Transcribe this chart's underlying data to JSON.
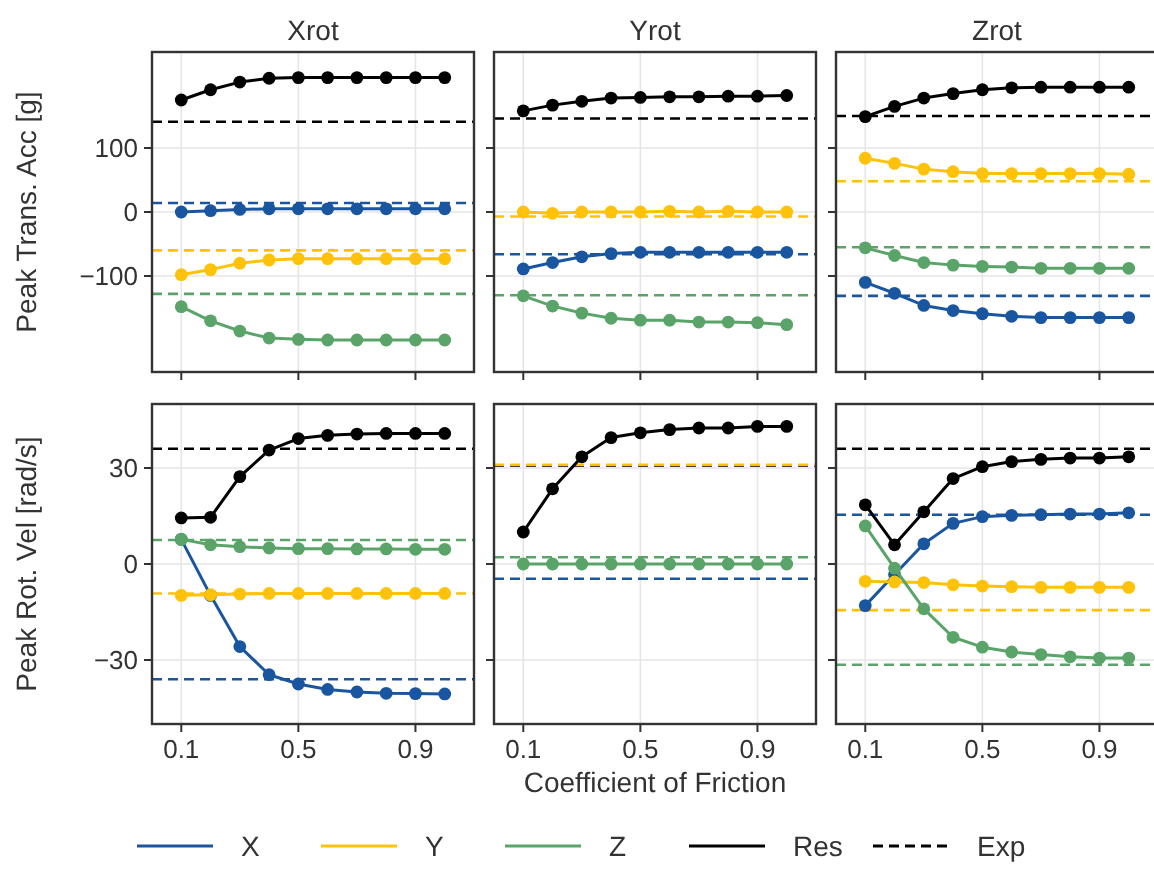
{
  "chart_data": [
    {
      "type": "line",
      "title": "Xrot",
      "ylabel": "Peak Trans. Acc [g]",
      "x": [
        0.1,
        0.2,
        0.3,
        0.4,
        0.5,
        0.6,
        0.7,
        0.8,
        0.9,
        1.0
      ],
      "xlim": [
        0,
        1.1
      ],
      "xticks": [
        0.1,
        0.5,
        0.9
      ],
      "ylim": [
        -250,
        250
      ],
      "yticks": [
        -100,
        0,
        100
      ],
      "tick_labels": "y",
      "grid": true,
      "marker": "circle",
      "legend": "bottom",
      "series": [
        {
          "name": "X",
          "color": "#1a55a0",
          "values": [
            0,
            2,
            4,
            5,
            5,
            5,
            5,
            5,
            5,
            5
          ]
        },
        {
          "name": "Y",
          "color": "#ffc20a",
          "values": [
            -98,
            -90,
            -80,
            -75,
            -73,
            -73,
            -73,
            -73,
            -73,
            -73
          ]
        },
        {
          "name": "Z",
          "color": "#5aa469",
          "values": [
            -148,
            -170,
            -186,
            -197,
            -199,
            -200,
            -200,
            -200,
            -200,
            -200
          ]
        },
        {
          "name": "Res",
          "color": "#000000",
          "values": [
            175,
            191,
            203,
            209,
            210,
            210,
            210,
            210,
            210,
            210
          ]
        }
      ],
      "ref_lines": [
        {
          "axis": "y",
          "value": 141,
          "label": "Exp",
          "color": "#000000",
          "line_style": "dashed"
        },
        {
          "axis": "y",
          "value": 14,
          "color": "#1a55a0",
          "line_style": "dashed"
        },
        {
          "axis": "y",
          "value": -60,
          "color": "#ffc20a",
          "line_style": "dashed"
        },
        {
          "axis": "y",
          "value": -128,
          "color": "#5aa469",
          "line_style": "dashed"
        }
      ]
    },
    {
      "type": "line",
      "title": "Yrot",
      "x": [
        0.1,
        0.2,
        0.3,
        0.4,
        0.5,
        0.6,
        0.7,
        0.8,
        0.9,
        1.0
      ],
      "xlim": [
        0,
        1.1
      ],
      "xticks": [
        0.1,
        0.5,
        0.9
      ],
      "ylim": [
        -250,
        250
      ],
      "yticks": [
        -100,
        0,
        100
      ],
      "tick_labels": false,
      "grid": true,
      "marker": "circle",
      "series": [
        {
          "name": "X",
          "color": "#1a55a0",
          "values": [
            -89,
            -79,
            -70,
            -65,
            -63,
            -63,
            -63,
            -63,
            -63,
            -63
          ]
        },
        {
          "name": "Y",
          "color": "#ffc20a",
          "values": [
            0,
            -2,
            0,
            0,
            0,
            1,
            0,
            1,
            0,
            0
          ]
        },
        {
          "name": "Z",
          "color": "#5aa469",
          "values": [
            -131,
            -147,
            -158,
            -166,
            -169,
            -169,
            -172,
            -172,
            -173,
            -176
          ]
        },
        {
          "name": "Res",
          "color": "#000000",
          "values": [
            158,
            167,
            173,
            178,
            179,
            180,
            180,
            181,
            181,
            182
          ]
        }
      ],
      "ref_lines": [
        {
          "axis": "y",
          "value": 146,
          "color": "#000000",
          "line_style": "dashed"
        },
        {
          "axis": "y",
          "value": -66,
          "color": "#1a55a0",
          "line_style": "dashed"
        },
        {
          "axis": "y",
          "value": -7,
          "color": "#ffc20a",
          "line_style": "dashed"
        },
        {
          "axis": "y",
          "value": -130,
          "color": "#5aa469",
          "line_style": "dashed"
        }
      ]
    },
    {
      "type": "line",
      "title": "Zrot",
      "x": [
        0.1,
        0.2,
        0.3,
        0.4,
        0.5,
        0.6,
        0.7,
        0.8,
        0.9,
        1.0
      ],
      "xlim": [
        0,
        1.1
      ],
      "xticks": [
        0.1,
        0.5,
        0.9
      ],
      "ylim": [
        -250,
        250
      ],
      "yticks": [
        -100,
        0,
        100
      ],
      "tick_labels": false,
      "grid": true,
      "marker": "circle",
      "series": [
        {
          "name": "X",
          "color": "#1a55a0",
          "values": [
            -110,
            -127,
            -146,
            -154,
            -159,
            -163,
            -165,
            -165,
            -165,
            -165
          ]
        },
        {
          "name": "Y",
          "color": "#ffc20a",
          "values": [
            84,
            76,
            67,
            63,
            60,
            60,
            60,
            60,
            60,
            59
          ]
        },
        {
          "name": "Z",
          "color": "#5aa469",
          "values": [
            -56,
            -68,
            -79,
            -83,
            -85,
            -86,
            -88,
            -88,
            -88,
            -88
          ]
        },
        {
          "name": "Res",
          "color": "#000000",
          "values": [
            149,
            165,
            178,
            185,
            191,
            194,
            195,
            195,
            195,
            195
          ]
        }
      ],
      "ref_lines": [
        {
          "axis": "y",
          "value": 150,
          "color": "#000000",
          "line_style": "dashed"
        },
        {
          "axis": "y",
          "value": -131,
          "color": "#1a55a0",
          "line_style": "dashed"
        },
        {
          "axis": "y",
          "value": 48,
          "color": "#ffc20a",
          "line_style": "dashed"
        },
        {
          "axis": "y",
          "value": -55,
          "color": "#5aa469",
          "line_style": "dashed"
        }
      ]
    },
    {
      "type": "line",
      "ylabel": "Peak Rot. Vel [rad/s]",
      "x": [
        0.1,
        0.2,
        0.3,
        0.4,
        0.5,
        0.6,
        0.7,
        0.8,
        0.9,
        1.0
      ],
      "xlim": [
        0,
        1.1
      ],
      "xticks": [
        0.1,
        0.5,
        0.9
      ],
      "ylim": [
        -50,
        50
      ],
      "yticks": [
        -30,
        0,
        30
      ],
      "grid": true,
      "marker": "circle",
      "series": [
        {
          "name": "X",
          "color": "#1a55a0",
          "values": [
            7.7,
            -9.8,
            -25.8,
            -34.6,
            -37.5,
            -39.2,
            -40,
            -40.4,
            -40.5,
            -40.6
          ]
        },
        {
          "name": "Y",
          "color": "#ffc20a",
          "values": [
            -9.8,
            -9.6,
            -9.4,
            -9.2,
            -9.2,
            -9.2,
            -9.2,
            -9.2,
            -9.2,
            -9.2
          ]
        },
        {
          "name": "Z",
          "color": "#5aa469",
          "values": [
            7.7,
            6,
            5.4,
            5,
            4.8,
            4.8,
            4.7,
            4.7,
            4.6,
            4.6
          ]
        },
        {
          "name": "Res",
          "color": "#000000",
          "values": [
            14.4,
            14.6,
            27.3,
            35.6,
            39.2,
            40.2,
            40.6,
            40.8,
            40.8,
            40.8
          ]
        }
      ],
      "ref_lines": [
        {
          "axis": "y",
          "value": 36,
          "color": "#000000",
          "line_style": "dashed"
        },
        {
          "axis": "y",
          "value": -36,
          "color": "#1a55a0",
          "line_style": "dashed"
        },
        {
          "axis": "y",
          "value": -9.2,
          "color": "#ffc20a",
          "line_style": "dashed"
        },
        {
          "axis": "y",
          "value": 7.5,
          "color": "#5aa469",
          "line_style": "dashed"
        }
      ]
    },
    {
      "type": "line",
      "xlabel": "Coefficient of Friction",
      "x": [
        0.1,
        0.2,
        0.3,
        0.4,
        0.5,
        0.6,
        0.7,
        0.8,
        0.9,
        1.0
      ],
      "xlim": [
        0,
        1.1
      ],
      "xticks": [
        0.1,
        0.5,
        0.9
      ],
      "ylim": [
        -50,
        50
      ],
      "yticks": [
        -30,
        0,
        30
      ],
      "tick_labels": "x",
      "grid": true,
      "marker": "circle",
      "series": [
        {
          "name": "X",
          "color": "#1a55a0",
          "values": [
            null,
            null,
            null,
            null,
            null,
            null,
            null,
            null,
            null,
            null
          ]
        },
        {
          "name": "Y",
          "color": "#ffc20a",
          "values": [
            null,
            null,
            null,
            null,
            null,
            null,
            null,
            null,
            null,
            null
          ]
        },
        {
          "name": "Z",
          "color": "#5aa469",
          "values": [
            0,
            0,
            0,
            0,
            0,
            0,
            0,
            0,
            0,
            0
          ]
        },
        {
          "name": "Res",
          "color": "#000000",
          "values": [
            10,
            23.5,
            33.5,
            39.5,
            41,
            42,
            42.5,
            42.5,
            43,
            43
          ]
        }
      ],
      "ref_lines": [
        {
          "axis": "y",
          "value": 30.8,
          "color": "#000000",
          "line_style": "dashed"
        },
        {
          "axis": "y",
          "value": -4.6,
          "color": "#1a55a0",
          "line_style": "dashed"
        },
        {
          "axis": "y",
          "value": 31,
          "color": "#ffc20a",
          "line_style": "dashed"
        },
        {
          "axis": "y",
          "value": 2.1,
          "color": "#5aa469",
          "line_style": "dashed"
        }
      ]
    },
    {
      "type": "line",
      "x": [
        0.1,
        0.2,
        0.3,
        0.4,
        0.5,
        0.6,
        0.7,
        0.8,
        0.9,
        1.0
      ],
      "xlim": [
        0,
        1.1
      ],
      "xticks": [
        0.1,
        0.5,
        0.9
      ],
      "ylim": [
        -50,
        50
      ],
      "yticks": [
        -30,
        0,
        30
      ],
      "tick_labels": "x",
      "grid": true,
      "marker": "circle",
      "series": [
        {
          "name": "X",
          "color": "#1a55a0",
          "values": [
            -13,
            -3.3,
            6.3,
            12.7,
            14.8,
            15.2,
            15.4,
            15.6,
            15.6,
            16
          ]
        },
        {
          "name": "Y",
          "color": "#ffc20a",
          "values": [
            -5.4,
            -5.6,
            -5.8,
            -6.5,
            -6.9,
            -7.1,
            -7.3,
            -7.3,
            -7.3,
            -7.3
          ]
        },
        {
          "name": "Z",
          "color": "#5aa469",
          "values": [
            11.9,
            -1.3,
            -14,
            -22.9,
            -26,
            -27.5,
            -28.3,
            -29,
            -29.4,
            -29.4
          ]
        },
        {
          "name": "Res",
          "color": "#000000",
          "values": [
            18.5,
            6,
            16.3,
            26.7,
            30.4,
            32,
            32.7,
            33.1,
            33.1,
            33.5
          ]
        }
      ],
      "ref_lines": [
        {
          "axis": "y",
          "value": 36,
          "color": "#000000",
          "line_style": "dashed"
        },
        {
          "axis": "y",
          "value": 15.4,
          "color": "#1a55a0",
          "line_style": "dashed"
        },
        {
          "axis": "y",
          "value": -14.4,
          "color": "#ffc20a",
          "line_style": "dashed"
        },
        {
          "axis": "y",
          "value": -31.5,
          "color": "#5aa469",
          "line_style": "dashed"
        }
      ]
    }
  ]
}
